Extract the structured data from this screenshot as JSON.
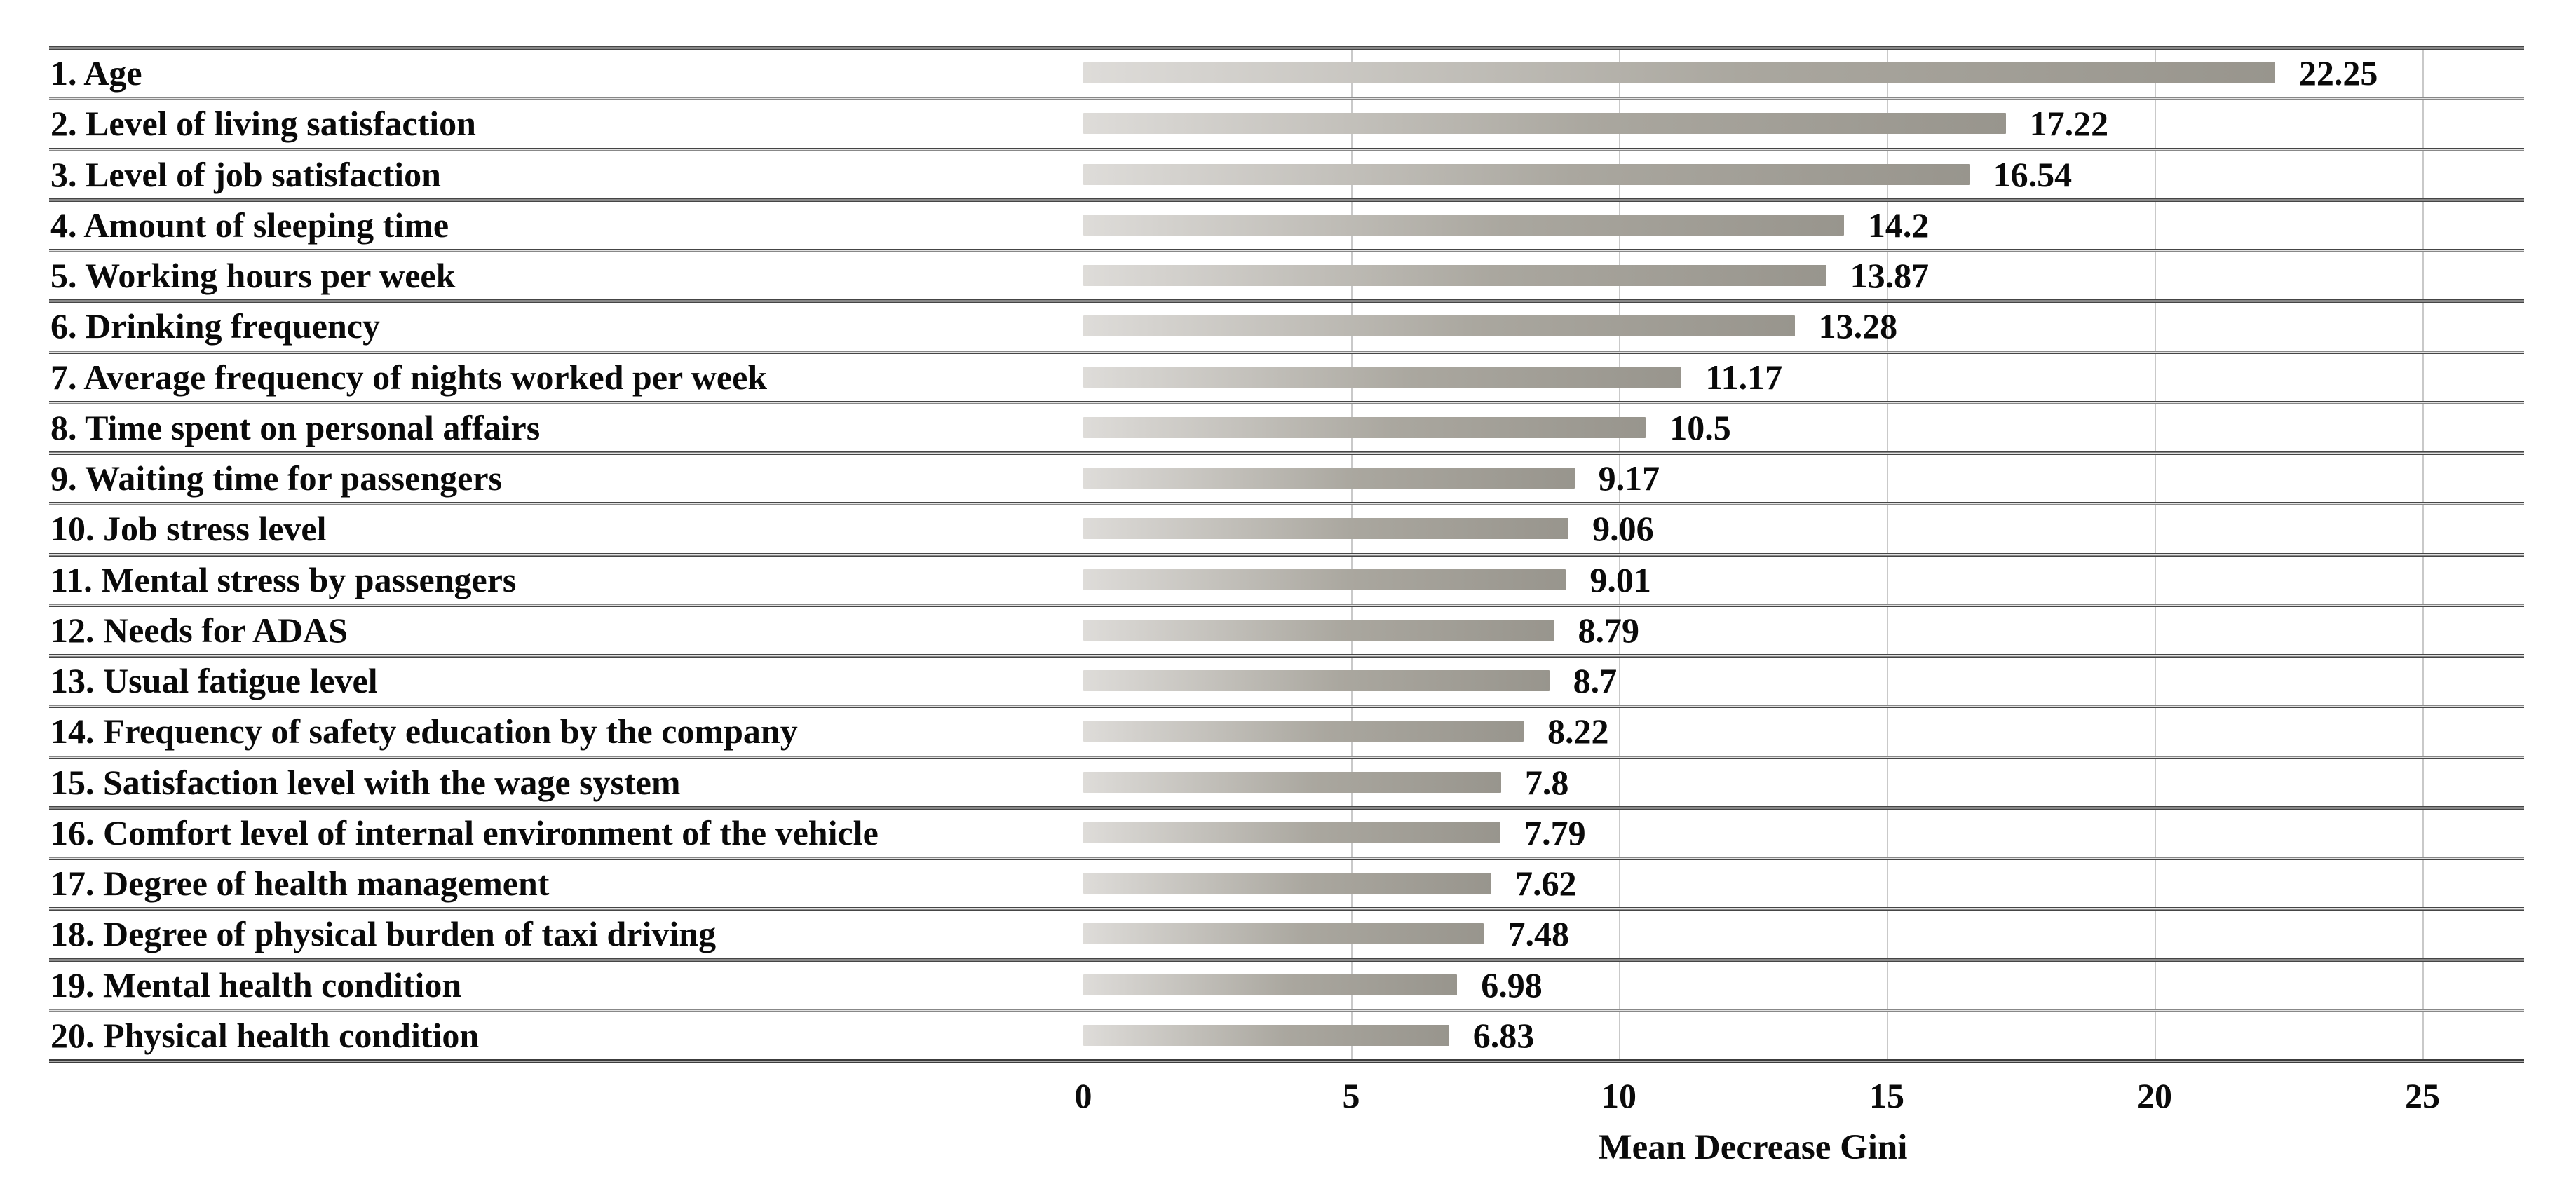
{
  "chart_data": {
    "type": "bar",
    "orientation": "horizontal",
    "title": "",
    "xlabel": "Mean Decrease Gini",
    "ylabel": "",
    "categories": [
      "1. Age",
      "2. Level of living satisfaction",
      "3. Level of job satisfaction",
      "4. Amount of sleeping time",
      "5. Working hours per week",
      "6. Drinking frequency",
      "7. Average frequency of nights worked per week",
      "8. Time spent on personal affairs",
      "9. Waiting time for passengers",
      "10. Job stress level",
      "11. Mental stress by passengers",
      "12. Needs for ADAS",
      "13. Usual fatigue level",
      "14. Frequency of safety education by the company",
      "15. Satisfaction level with the wage system",
      "16. Comfort level of internal environment of the vehicle",
      "17. Degree of health management",
      "18. Degree of physical burden of taxi driving",
      "19. Mental health condition",
      "20. Physical health condition"
    ],
    "values": [
      22.25,
      17.22,
      16.54,
      14.2,
      13.87,
      13.28,
      11.17,
      10.5,
      9.17,
      9.06,
      9.01,
      8.79,
      8.7,
      8.22,
      7.8,
      7.79,
      7.62,
      7.48,
      6.98,
      6.83
    ],
    "value_labels": [
      "22.25",
      "17.22",
      "16.54",
      "14.2",
      "13.87",
      "13.28",
      "11.17",
      "10.5",
      "9.17",
      "9.06",
      "9.01",
      "8.79",
      "8.7",
      "8.22",
      "7.8",
      "7.79",
      "7.62",
      "7.48",
      "6.98",
      "6.83"
    ],
    "x_ticks": [
      "0",
      "5",
      "10",
      "15",
      "20",
      "25"
    ],
    "xlim": [
      0,
      25
    ],
    "grid": "vertical-lines-at-ticks",
    "legend": "none",
    "colors": {
      "bar_gradient_start": "#dedcd9",
      "bar_gradient_mid": "#aaa79f",
      "bar_gradient_end": "#98958d",
      "row_separator": "#454545",
      "gridline": "#c9c9c9",
      "text": "#0a0a0a",
      "background": "#ffffff"
    }
  }
}
